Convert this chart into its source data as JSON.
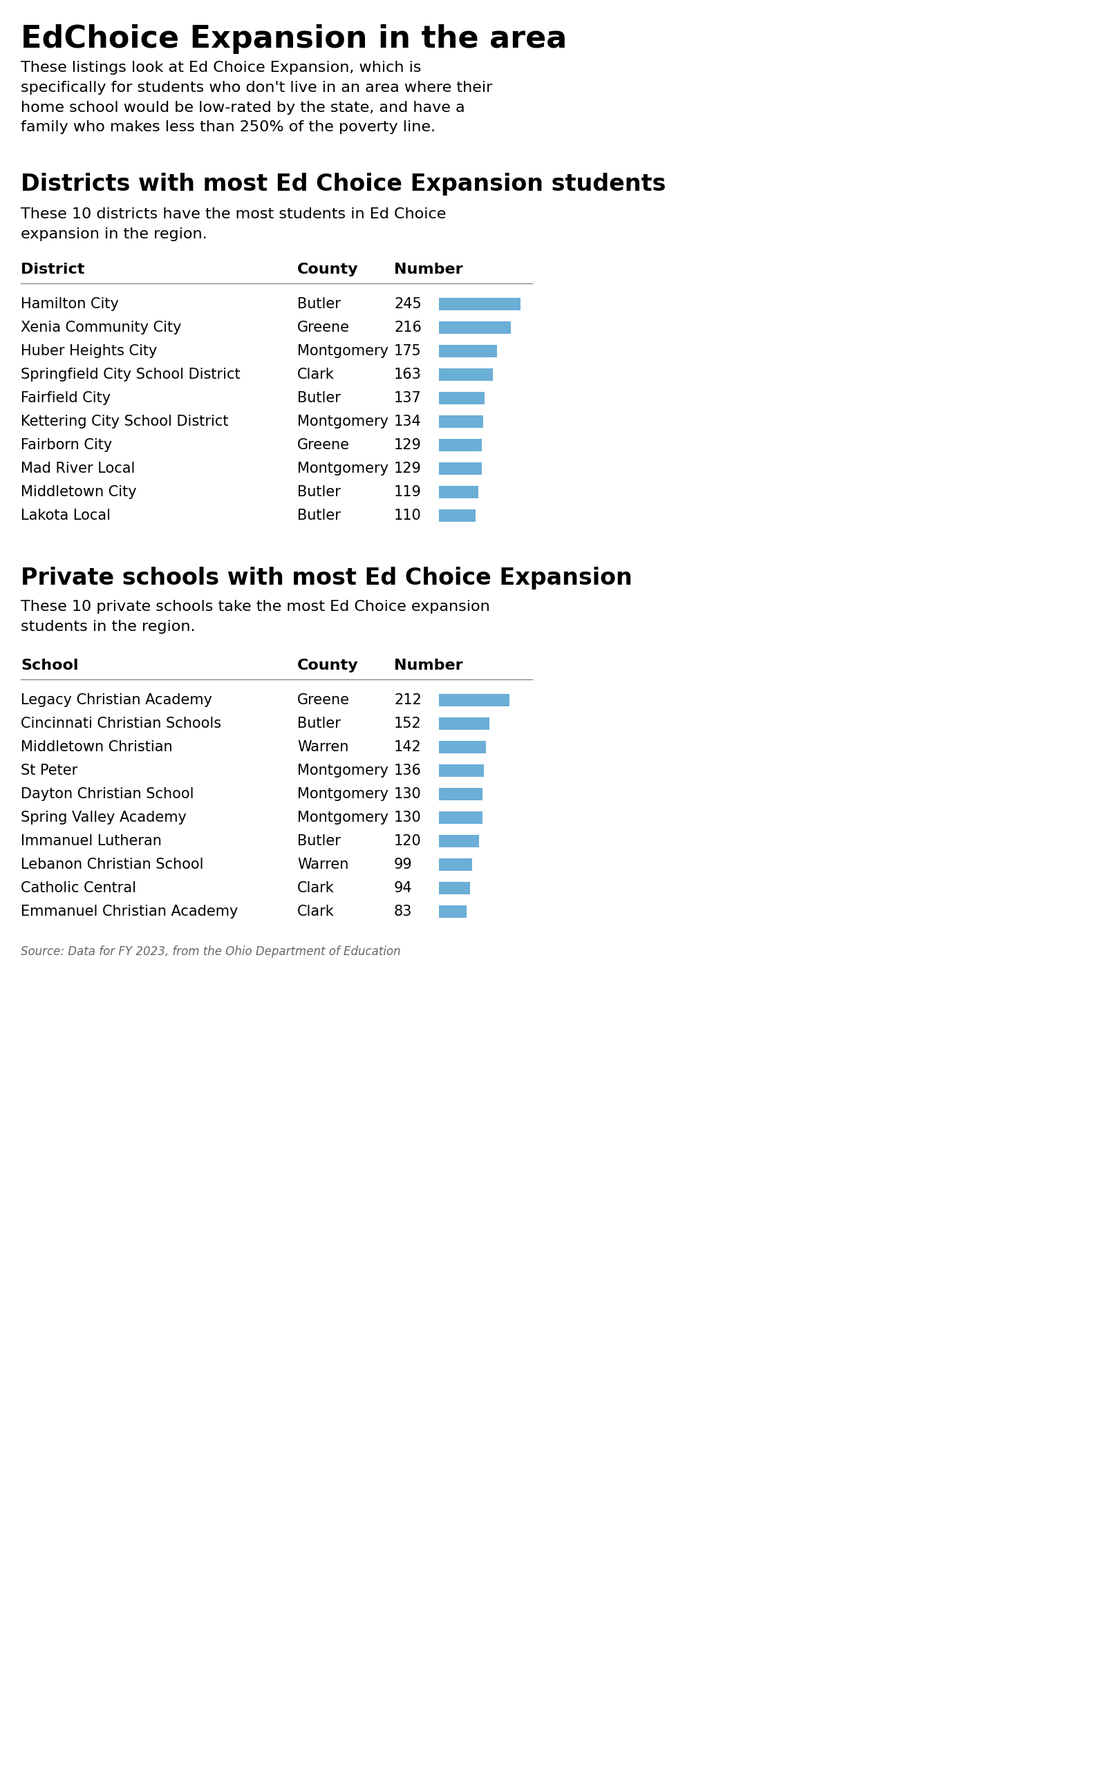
{
  "main_title": "EdChoice Expansion in the area",
  "main_subtitle": "These listings look at Ed Choice Expansion, which is\nspecifically for students who don't live in an area where their\nhome school would be low-rated by the state, and have a\nfamily who makes less than 250% of the poverty line.",
  "section1_title": "Districts with most Ed Choice Expansion students",
  "section1_subtitle": "These 10 districts have the most students in Ed Choice\nexpansion in the region.",
  "section1_col_headers": [
    "District",
    "County",
    "Number"
  ],
  "district_names": [
    "Hamilton City",
    "Xenia Community City",
    "Huber Heights City",
    "Springfield City School District",
    "Fairfield City",
    "Kettering City School District",
    "Fairborn City",
    "Mad River Local",
    "Middletown City",
    "Lakota Local"
  ],
  "district_counties": [
    "Butler",
    "Greene",
    "Montgomery",
    "Clark",
    "Butler",
    "Montgomery",
    "Greene",
    "Montgomery",
    "Butler",
    "Butler"
  ],
  "district_values": [
    245,
    216,
    175,
    163,
    137,
    134,
    129,
    129,
    119,
    110
  ],
  "section2_title": "Private schools with most Ed Choice Expansion",
  "section2_subtitle": "These 10 private schools take the most Ed Choice expansion\nstudents in the region.",
  "section2_col_headers": [
    "School",
    "County",
    "Number"
  ],
  "school_names": [
    "Legacy Christian Academy",
    "Cincinnati Christian Schools",
    "Middletown Christian",
    "St Peter",
    "Dayton Christian School",
    "Spring Valley Academy",
    "Immanuel Lutheran",
    "Lebanon Christian School",
    "Catholic Central",
    "Emmanuel Christian Academy"
  ],
  "school_counties": [
    "Greene",
    "Butler",
    "Warren",
    "Montgomery",
    "Montgomery",
    "Montgomery",
    "Butler",
    "Warren",
    "Clark",
    "Clark"
  ],
  "school_values": [
    212,
    152,
    142,
    136,
    130,
    130,
    120,
    99,
    94,
    83
  ],
  "bar_color": "#6baed6",
  "bar_max": 260,
  "source_text": "Source: Data for FY 2023, from the Ohio Department of Education",
  "bg_color": "#ffffff",
  "text_color": "#000000",
  "line_color": "#888888"
}
